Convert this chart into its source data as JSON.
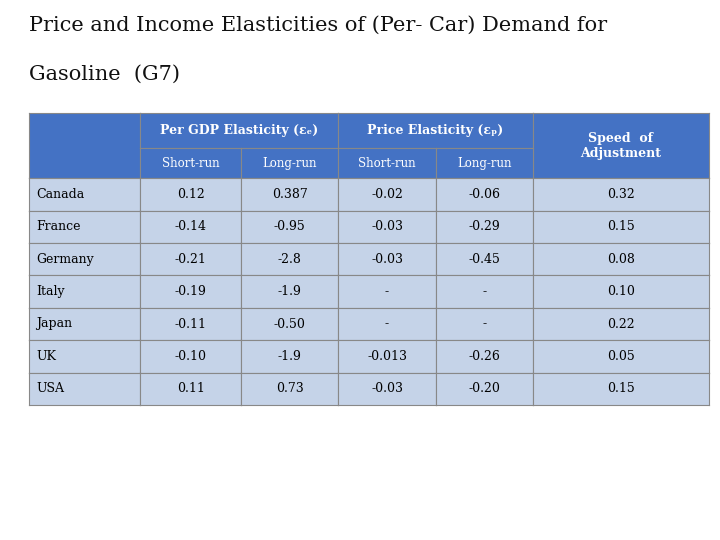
{
  "title_line1": "Price and Income Elasticities of (Per- Car) Demand for",
  "title_line2": "Gasoline  (G7)",
  "title_fontsize": 15,
  "header_gdp": "Per GDP Elasticity (εy)",
  "header_price": "Price Elasticity (εP)",
  "header_speed": "Speed  of\nAdjustment",
  "subheaders": [
    "Short-run",
    "Long-run",
    "Short-run",
    "Long-run"
  ],
  "countries": [
    "Canada",
    "France",
    "Germany",
    "Italy",
    "Japan",
    "UK",
    "USA"
  ],
  "gdp_short": [
    "0.12",
    "-0.14",
    "-0.21",
    "-0.19",
    "-0.11",
    "-0.10",
    "0.11"
  ],
  "gdp_long": [
    "0.387",
    "-0.95",
    "-2.8",
    "-1.9",
    "-0.50",
    "-1.9",
    "0.73"
  ],
  "price_short": [
    "-0.02",
    "-0.03",
    "-0.03",
    "-",
    "-",
    "-0.013",
    "-0.03"
  ],
  "price_long": [
    "-0.06",
    "-0.29",
    "-0.45",
    "-",
    "-",
    "-0.26",
    "-0.20"
  ],
  "speed": [
    "0.32",
    "0.15",
    "0.08",
    "0.10",
    "0.22",
    "0.05",
    "0.15"
  ],
  "header_bg": "#4472C4",
  "header_text": "#FFFFFF",
  "row_bg": "#C5D3E8",
  "row_text": "#000000",
  "border_color": "#888888",
  "fig_bg": "#FFFFFF"
}
